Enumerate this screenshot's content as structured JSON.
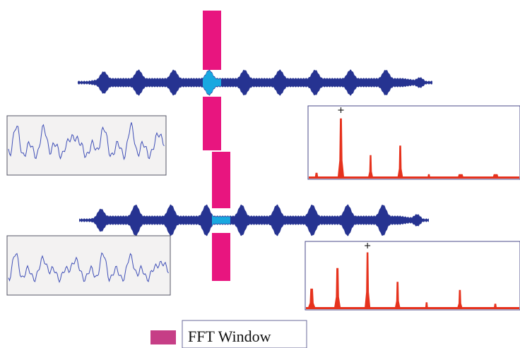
{
  "legend": {
    "label": "FFT Window"
  },
  "colors": {
    "waveform": "#263391",
    "fft_window": "#e8157f",
    "window_overlap": "#18a8e0",
    "spectrum": "#e6321d",
    "segment_trace": "#3f4fb7",
    "panel_border": "#555566",
    "spectrum_border": "#4a4a8a",
    "legend_swatch": "#c63e86"
  },
  "panels": [
    {
      "spectrum_peaks": [
        {
          "pos": 0.04,
          "h": 0.08,
          "w": 0.016
        },
        {
          "pos": 0.155,
          "h": 0.82,
          "w": 0.016
        },
        {
          "pos": 0.295,
          "h": 0.32,
          "w": 0.012
        },
        {
          "pos": 0.435,
          "h": 0.45,
          "w": 0.014
        },
        {
          "pos": 0.57,
          "h": 0.06,
          "w": 0.012
        },
        {
          "pos": 0.72,
          "h": 0.06,
          "w": 0.03
        },
        {
          "pos": 0.885,
          "h": 0.06,
          "w": 0.03
        }
      ],
      "peak_marker_pos": 0.155
    },
    {
      "spectrum_peaks": [
        {
          "pos": 0.03,
          "h": 0.3,
          "w": 0.02
        },
        {
          "pos": 0.15,
          "h": 0.6,
          "w": 0.016
        },
        {
          "pos": 0.29,
          "h": 0.83,
          "w": 0.014
        },
        {
          "pos": 0.43,
          "h": 0.4,
          "w": 0.014
        },
        {
          "pos": 0.565,
          "h": 0.1,
          "w": 0.012
        },
        {
          "pos": 0.72,
          "h": 0.28,
          "w": 0.014
        },
        {
          "pos": 0.885,
          "h": 0.08,
          "w": 0.014
        }
      ],
      "peak_marker_pos": 0.29
    }
  ]
}
